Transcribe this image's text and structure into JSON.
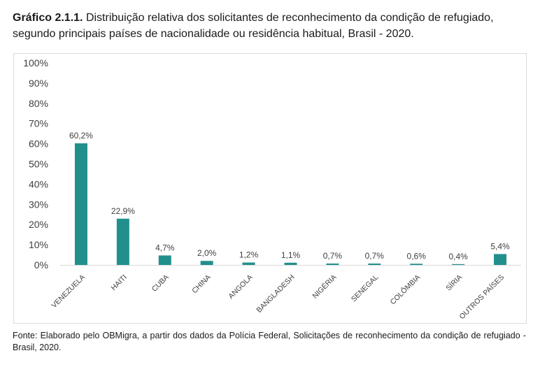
{
  "caption": {
    "label": "Gráfico 2.1.1.",
    "text": " Distribuição relativa dos solicitantes de reconhecimento da condição de refugiado, segundo principais países de nacionalidade ou residência habitual, Brasil - 2020."
  },
  "chart_data": {
    "type": "bar",
    "categories": [
      "VENEZUELA",
      "HAITI",
      "CUBA",
      "CHINA",
      "ANGOLA",
      "BANGLADESH",
      "NIGÉRIA",
      "SENEGAL",
      "COLÔMBIA",
      "SÍRIA",
      "OUTROS PAÍSES"
    ],
    "values": [
      60.2,
      22.9,
      4.7,
      2.0,
      1.2,
      1.1,
      0.7,
      0.7,
      0.6,
      0.4,
      5.4
    ],
    "data_labels": [
      "60,2%",
      "22,9%",
      "4,7%",
      "2,0%",
      "1,2%",
      "1,1%",
      "0,7%",
      "0,7%",
      "0,6%",
      "0,4%",
      "5,4%"
    ],
    "yticks": [
      "0%",
      "10%",
      "20%",
      "30%",
      "40%",
      "50%",
      "60%",
      "70%",
      "80%",
      "90%",
      "100%"
    ],
    "ylim": [
      0,
      100
    ],
    "bar_color": "#21908d",
    "grid": false,
    "legend": "none"
  },
  "source": "Fonte: Elaborado pelo OBMigra, a partir dos dados da Polícia Federal, Solicitações de reconhecimento da condição de refugiado - Brasil, 2020."
}
